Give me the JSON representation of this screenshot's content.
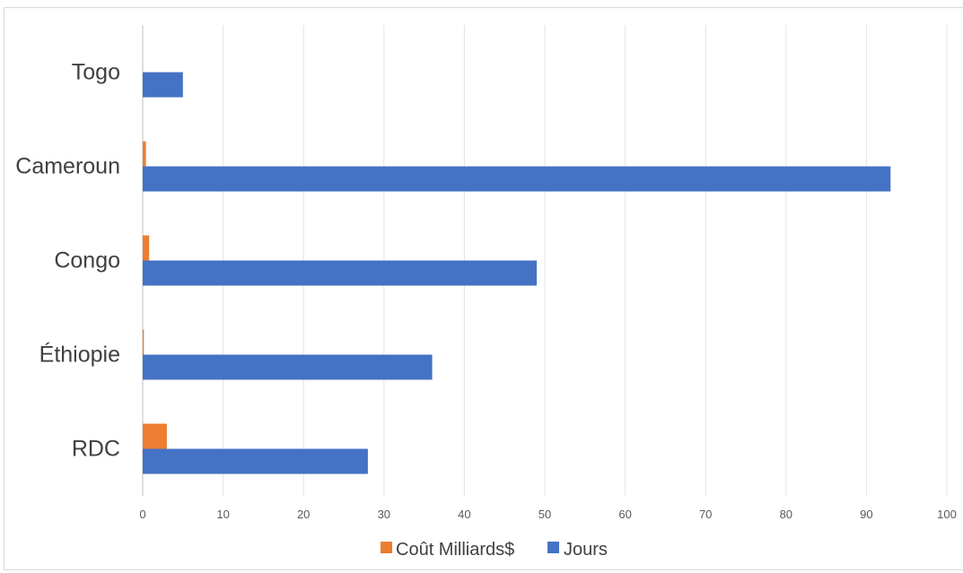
{
  "chart_data": {
    "type": "bar",
    "orientation": "horizontal",
    "categories": [
      "Togo",
      "Cameroun",
      "Congo",
      "Éthiopie",
      "RDC"
    ],
    "series": [
      {
        "name": "Coût Milliards$",
        "color": "#ED7D31",
        "values": [
          0,
          0.4,
          0.8,
          0.15,
          3
        ]
      },
      {
        "name": "Jours",
        "color": "#4472C4",
        "values": [
          5,
          93,
          49,
          36,
          28
        ]
      }
    ],
    "xlim": [
      0,
      100
    ],
    "xticks": [
      0,
      10,
      20,
      30,
      40,
      50,
      60,
      70,
      80,
      90,
      100
    ],
    "grid": true,
    "legend": "bottom"
  }
}
